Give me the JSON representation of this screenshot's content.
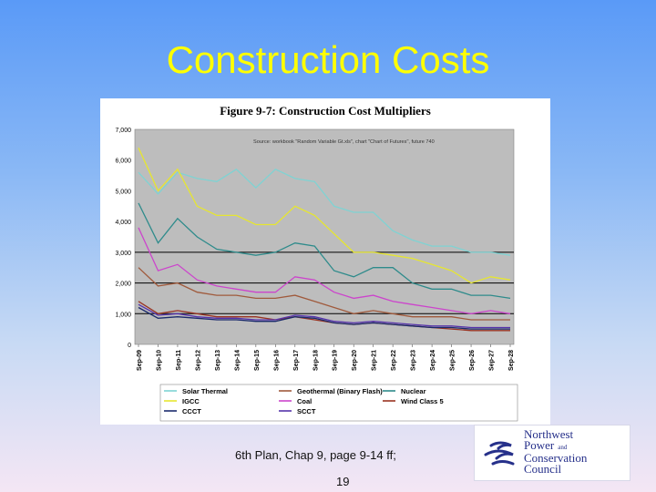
{
  "slide": {
    "title": "Construction Costs",
    "caption": "6th Plan, Chap 9, page 9-14 ff;",
    "page_number": "19"
  },
  "logo": {
    "line1": "Northwest",
    "line2": "Power",
    "and": "and",
    "line3": "Conservation",
    "line4": "Council"
  },
  "chart_data": {
    "type": "line",
    "title": "Figure 9-7:  Construction Cost Multipliers",
    "source_note": "Source: workbook \"Random Variable Gt.xls\", chart \"Chart of Futures\", future 740",
    "ylim": [
      0,
      7000
    ],
    "yticks": [
      "0",
      "1,000",
      "2,000",
      "3,000",
      "4,000",
      "5,000",
      "6,000",
      "7,000"
    ],
    "reference_lines": [
      1000,
      2000,
      3000
    ],
    "categories": [
      "Sep-09",
      "Sep-10",
      "Sep-11",
      "Sep-12",
      "Sep-13",
      "Sep-14",
      "Sep-15",
      "Sep-16",
      "Sep-17",
      "Sep-18",
      "Sep-19",
      "Sep-20",
      "Sep-21",
      "Sep-22",
      "Sep-23",
      "Sep-24",
      "Sep-25",
      "Sep-26",
      "Sep-27",
      "Sep-28"
    ],
    "legend": [
      "Solar Thermal",
      "Geothermal (Binary Flash)",
      "Nuclear",
      "IGCC",
      "Coal",
      "Wind Class 5",
      "CCCT",
      "SCCT"
    ],
    "series": [
      {
        "name": "Solar Thermal",
        "color": "#7fd3d3",
        "values": [
          5600,
          4900,
          5600,
          5400,
          5300,
          5700,
          5100,
          5700,
          5400,
          5300,
          4500,
          4300,
          4300,
          3700,
          3400,
          3200,
          3200,
          3000,
          3000,
          2900
        ]
      },
      {
        "name": "IGCC",
        "color": "#e6e630",
        "values": [
          6400,
          5000,
          5700,
          4500,
          4200,
          4200,
          3900,
          3900,
          4500,
          4200,
          3600,
          3000,
          3000,
          2900,
          2800,
          2600,
          2400,
          2000,
          2200,
          2100
        ]
      },
      {
        "name": "Nuclear",
        "color": "#2e8b8b",
        "values": [
          4600,
          3300,
          4100,
          3500,
          3100,
          3000,
          2900,
          3000,
          3300,
          3200,
          2400,
          2200,
          2500,
          2500,
          2000,
          1800,
          1800,
          1600,
          1600,
          1500
        ]
      },
      {
        "name": "Coal",
        "color": "#cc44cc",
        "values": [
          3800,
          2400,
          2600,
          2100,
          1900,
          1800,
          1700,
          1700,
          2200,
          2100,
          1700,
          1500,
          1600,
          1400,
          1300,
          1200,
          1100,
          1000,
          1100,
          1000
        ]
      },
      {
        "name": "Geothermal (Binary Flash)",
        "color": "#a05a3c",
        "values": [
          2500,
          1900,
          2000,
          1700,
          1600,
          1600,
          1500,
          1500,
          1600,
          1400,
          1200,
          1000,
          1100,
          1000,
          900,
          900,
          900,
          800,
          800,
          800
        ]
      },
      {
        "name": "Wind Class 5",
        "color": "#993322",
        "values": [
          1400,
          1000,
          1100,
          1000,
          900,
          900,
          900,
          800,
          900,
          800,
          700,
          650,
          700,
          650,
          600,
          550,
          500,
          450,
          450,
          450
        ]
      },
      {
        "name": "CCCT",
        "color": "#1a2a6c",
        "values": [
          1200,
          850,
          900,
          850,
          800,
          800,
          750,
          750,
          900,
          850,
          700,
          650,
          700,
          650,
          600,
          550,
          550,
          500,
          500,
          500
        ]
      },
      {
        "name": "SCCT",
        "color": "#5533aa",
        "values": [
          1300,
          950,
          1000,
          900,
          850,
          850,
          800,
          800,
          950,
          900,
          750,
          700,
          750,
          700,
          650,
          600,
          600,
          550,
          550,
          550
        ]
      }
    ]
  }
}
